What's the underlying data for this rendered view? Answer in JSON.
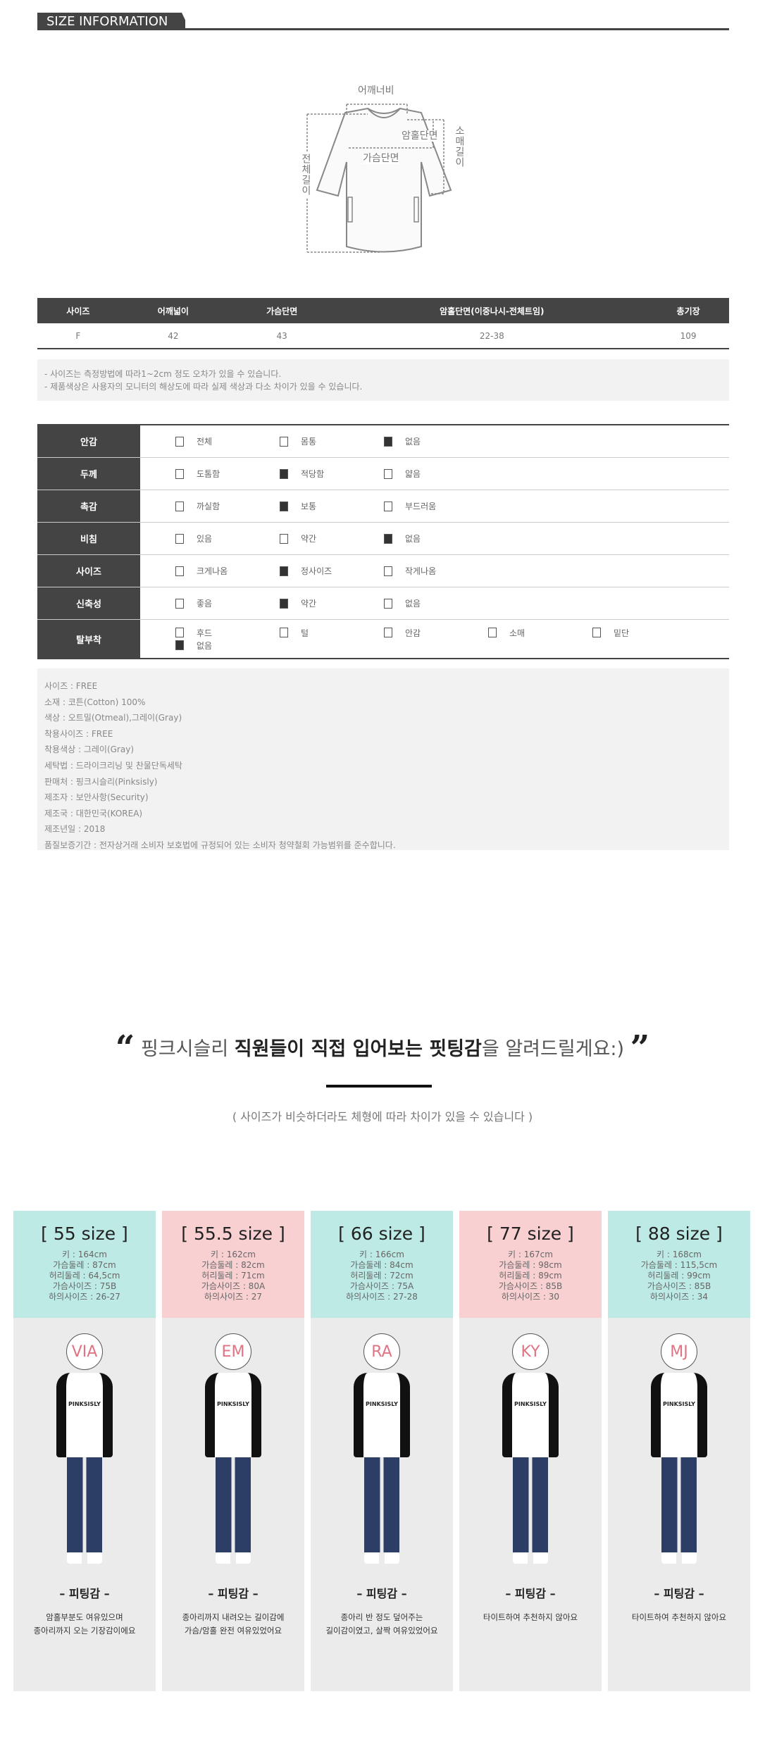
{
  "header": {
    "title": "SIZE INFORMATION"
  },
  "diagram": {
    "labels": {
      "shoulder": "어깨너비",
      "armhole": "암홀단면",
      "chest": "가슴단면",
      "sleeve": "소매길이",
      "total": "전체길이"
    }
  },
  "size_table": {
    "headers": [
      "사이즈",
      "어깨넓이",
      "가슴단면",
      "암홀단면(이중나시-전체트임)",
      "총기장"
    ],
    "rows": [
      [
        "F",
        "42",
        "43",
        "22-38",
        "109"
      ]
    ]
  },
  "notes": [
    "- 사이즈는 측정방법에 따라1~2cm 정도 오차가 있을 수 있습니다.",
    "- 제품색상은 사용자의 모니터의 해상도에 따라 실제 색상과 다소 차이가 있을 수 있습니다."
  ],
  "attributes": [
    {
      "label": "안감",
      "options": [
        {
          "text": "전체",
          "checked": false
        },
        {
          "text": "몸통",
          "checked": false
        },
        {
          "text": "없음",
          "checked": true
        }
      ]
    },
    {
      "label": "두께",
      "options": [
        {
          "text": "도톰함",
          "checked": false
        },
        {
          "text": "적당함",
          "checked": true
        },
        {
          "text": "얇음",
          "checked": false
        }
      ]
    },
    {
      "label": "촉감",
      "options": [
        {
          "text": "까실함",
          "checked": false
        },
        {
          "text": "보통",
          "checked": true
        },
        {
          "text": "부드러움",
          "checked": false
        }
      ]
    },
    {
      "label": "비침",
      "options": [
        {
          "text": "있음",
          "checked": false
        },
        {
          "text": "약간",
          "checked": false
        },
        {
          "text": "없음",
          "checked": true
        }
      ]
    },
    {
      "label": "사이즈",
      "options": [
        {
          "text": "크게나옴",
          "checked": false
        },
        {
          "text": "정사이즈",
          "checked": true
        },
        {
          "text": "작게나옴",
          "checked": false
        }
      ]
    },
    {
      "label": "신축성",
      "options": [
        {
          "text": "좋음",
          "checked": false
        },
        {
          "text": "약간",
          "checked": true
        },
        {
          "text": "없음",
          "checked": false
        }
      ]
    },
    {
      "label": "탈부착",
      "options": [
        {
          "text": "후드",
          "checked": false
        },
        {
          "text": "털",
          "checked": false
        },
        {
          "text": "안감",
          "checked": false
        },
        {
          "text": "소매",
          "checked": false
        },
        {
          "text": "밑단",
          "checked": false
        },
        {
          "text": "없음",
          "checked": true
        }
      ]
    }
  ],
  "info": [
    "사이즈 : FREE",
    "소재 : 코튼(Cotton) 100%",
    "색상 : 오트밀(Otmeal),그레이(Gray)",
    "착용사이즈 : FREE",
    "착용색상 : 그레이(Gray)",
    "세탁법 : 드라이크리닝 및 찬물단독세탁",
    "판매처 : 핑크시슬리(Pinksisly)",
    "제조자 : 보안사항(Security)",
    "제조국 : 대한민국(KOREA)",
    "제조년일 : 2018",
    "품질보증기간 : 전자상거래 소비자 보호법에 규정되어 있는 소비자 청약철회 가능범위를 준수합니다."
  ],
  "fitting": {
    "open_quote": "“",
    "close_quote": "”",
    "heading_pre": "핑크시슬리 ",
    "heading_bold": "직원들이 직접 입어보는 핏팅감",
    "heading_post": "을 알려드릴게요:)",
    "subtitle": "( 사이즈가 비슷하더라도 체형에 따라 차이가 있을 수 있습니다 )",
    "cards": [
      {
        "title": "[ 55 size ]",
        "color": "#bdeae5",
        "stats": [
          "키 : 164cm",
          "가슴둘레 : 87cm",
          "허리둘레 : 64,5cm",
          "가슴사이즈 : 75B",
          "하의사이즈 : 26-27"
        ],
        "name": "VIA",
        "shirt_logo": "PINKSISLY",
        "fit_label": "– 피팅감 –",
        "desc": [
          "암홀부분도 여유있으며",
          "종아리까지 오는 기장감이에요"
        ]
      },
      {
        "title": "[ 55.5 size ]",
        "color": "#f9d0d1",
        "stats": [
          "키 : 162cm",
          "가슴둘레 : 82cm",
          "허리둘레 : 71cm",
          "가슴사이즈 : 80A",
          "하의사이즈 : 27"
        ],
        "name": "EM",
        "shirt_logo": "PINKSISLY",
        "fit_label": "– 피팅감 –",
        "desc": [
          "종아리까지 내려오는 길이감에",
          "가슴/암홀 완전 여유있었어요"
        ]
      },
      {
        "title": "[ 66 size ]",
        "color": "#bdeae5",
        "stats": [
          "키 : 166cm",
          "가슴둘레 : 84cm",
          "허리둘레 : 72cm",
          "가슴사이즈 : 75A",
          "하의사이즈 : 27-28"
        ],
        "name": "RA",
        "shirt_logo": "PINKSISLY",
        "fit_label": "– 피팅감 –",
        "desc": [
          "종아리 반 정도 덮어주는",
          "길이감이였고, 살짝 여유있었어요"
        ]
      },
      {
        "title": "[ 77 size ]",
        "color": "#f9d0d1",
        "stats": [
          "키 : 167cm",
          "가슴둘레 : 98cm",
          "허리둘레 : 89cm",
          "가슴사이즈 : 85B",
          "하의사이즈 : 30"
        ],
        "name": "KY",
        "shirt_logo": "PINKSISLY",
        "fit_label": "– 피팅감 –",
        "desc": [
          "타이트하여 추천하지 않아요"
        ]
      },
      {
        "title": "[ 88 size ]",
        "color": "#bdeae5",
        "stats": [
          "키 : 168cm",
          "가슴둘레 : 115,5cm",
          "허리둘레 : 99cm",
          "가슴사이즈 : 85B",
          "하의사이즈 : 34"
        ],
        "name": "MJ",
        "shirt_logo": "PINKSISLY",
        "fit_label": "– 피팅감 –",
        "desc": [
          "타이트하여 추천하지 않아요"
        ]
      }
    ]
  }
}
